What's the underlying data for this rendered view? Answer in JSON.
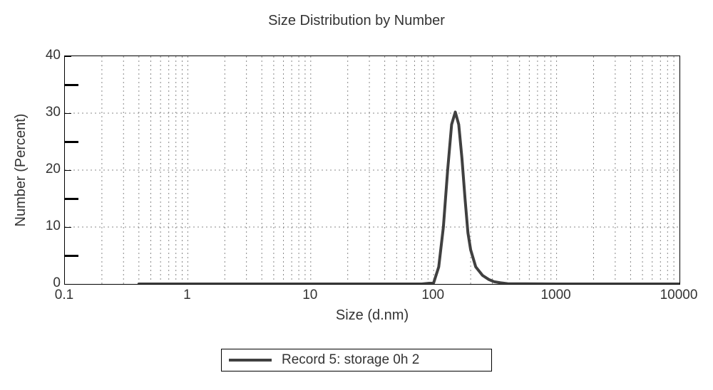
{
  "chart": {
    "type": "line",
    "title": "Size Distribution by Number",
    "title_fontsize": 20,
    "xlabel": "Size (d.nm)",
    "ylabel": "Number (Percent)",
    "label_fontsize": 20,
    "tick_fontsize": 19,
    "text_color": "#333333",
    "background_color": "#ffffff",
    "border_color": "#000000",
    "grid_color": "#888888",
    "grid_dash": "2,4",
    "x_scale": "log",
    "xlim": [
      0.1,
      10000
    ],
    "x_ticks_major": [
      0.1,
      1,
      10,
      100,
      1000,
      10000
    ],
    "x_tick_labels": [
      "0.1",
      "1",
      "10",
      "100",
      "1000",
      "10000"
    ],
    "y_scale": "linear",
    "ylim": [
      0,
      40
    ],
    "y_ticks_major": [
      0,
      10,
      20,
      30,
      40
    ],
    "y_ticks_minor": [
      5,
      15,
      25,
      35
    ],
    "y_tick_labels": [
      "0",
      "10",
      "20",
      "30",
      "40"
    ],
    "series": [
      {
        "name": "Record 5: storage 0h 2",
        "color": "#404040",
        "line_width": 4,
        "x": [
          0.4,
          1,
          10,
          50,
          80,
          100,
          110,
          120,
          130,
          140,
          150,
          160,
          170,
          180,
          190,
          200,
          220,
          250,
          280,
          310,
          350,
          400,
          1000,
          10000
        ],
        "y": [
          0,
          0,
          0,
          0,
          0,
          0.2,
          3,
          10,
          20,
          28,
          30.2,
          28,
          22,
          15,
          9,
          6,
          3,
          1.5,
          0.8,
          0.4,
          0.2,
          0.05,
          0,
          0
        ]
      }
    ],
    "legend": {
      "position": "bottom-center",
      "labels": [
        "Record 5: storage 0h 2"
      ]
    }
  }
}
